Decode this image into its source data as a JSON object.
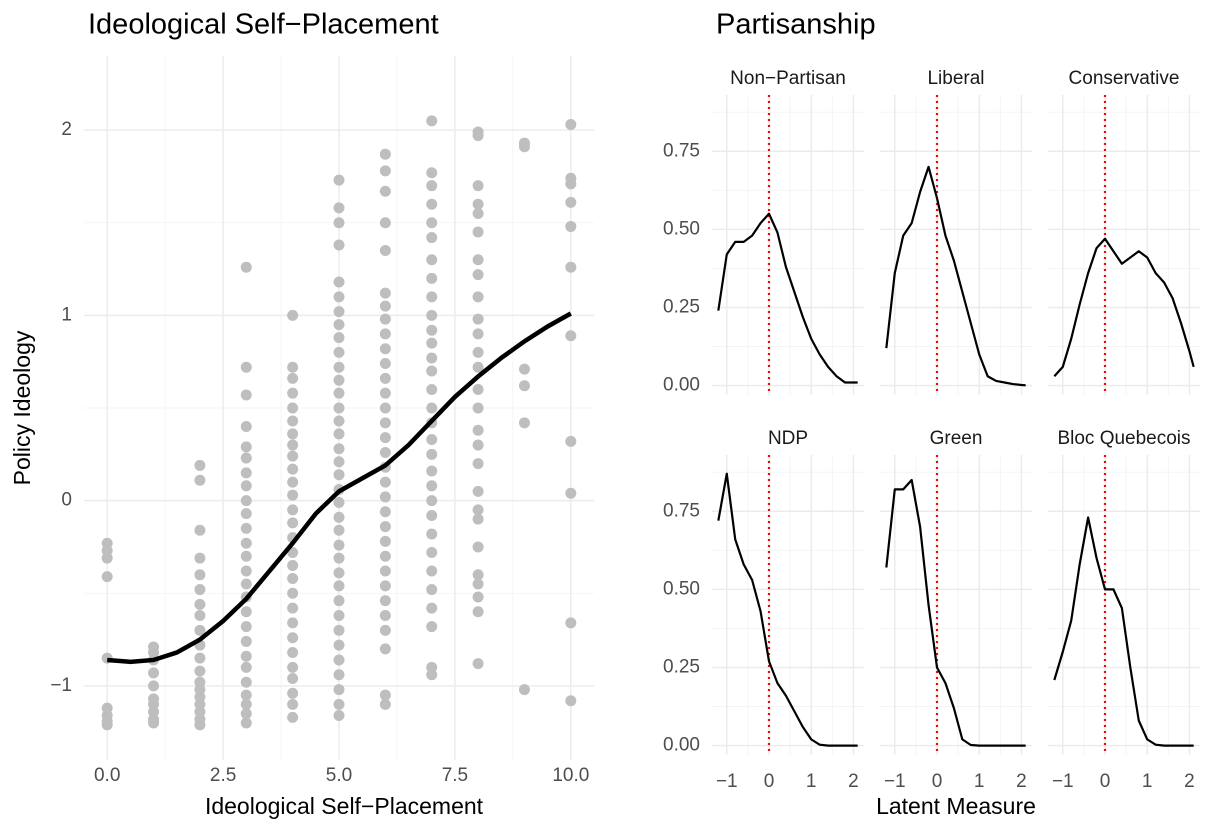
{
  "chart_data": [
    {
      "type": "scatter",
      "title": "Ideological Self−Placement",
      "x_label": "Ideological Self−Placement",
      "y_label": "Policy Ideology",
      "xlim": [
        -0.5,
        10.5
      ],
      "ylim": [
        -1.4,
        2.4
      ],
      "xticks": [
        {
          "value": 0,
          "label": "0.0"
        },
        2.5,
        {
          "value": 5,
          "label": "5.0"
        },
        7.5,
        {
          "value": 10,
          "label": "10.0"
        }
      ],
      "yticks": [
        {
          "value": -1,
          "label": "−1"
        },
        0,
        1,
        2
      ],
      "x_minor_ticks": [
        1.25,
        3.75,
        6.25,
        8.75
      ],
      "y_minor_ticks": [
        -0.5,
        0.5,
        1.5
      ],
      "grid": true,
      "point_color": "#bebebe",
      "groups": [
        {
          "x": 0,
          "y": [
            -0.23,
            -0.27,
            -0.31,
            -0.41,
            -0.85,
            -1.12,
            -1.16,
            -1.19,
            -1.21
          ]
        },
        {
          "x": 1,
          "y": [
            -0.79,
            -0.82,
            -0.86,
            -0.93,
            -1.0,
            -1.07,
            -1.1,
            -1.14,
            -1.18,
            -1.2
          ]
        },
        {
          "x": 2,
          "y": [
            0.19,
            0.11,
            -0.16,
            -0.31,
            -0.4,
            -0.48,
            -0.56,
            -0.62,
            -0.7,
            -0.78,
            -0.85,
            -0.92,
            -0.98,
            -1.02,
            -1.06,
            -1.1,
            -1.14,
            -1.18,
            -1.21
          ]
        },
        {
          "x": 3,
          "y": [
            1.26,
            0.72,
            0.57,
            0.4,
            0.29,
            0.23,
            0.15,
            0.08,
            0.0,
            -0.07,
            -0.15,
            -0.23,
            -0.3,
            -0.38,
            -0.45,
            -0.52,
            -0.6,
            -0.68,
            -0.76,
            -0.84,
            -0.9,
            -0.98,
            -1.05,
            -1.1,
            -1.15,
            -1.2
          ]
        },
        {
          "x": 4,
          "y": [
            1.0,
            0.72,
            0.66,
            0.58,
            0.5,
            0.43,
            0.36,
            0.3,
            0.24,
            0.17,
            0.1,
            0.03,
            -0.05,
            -0.12,
            -0.2,
            -0.28,
            -0.35,
            -0.42,
            -0.5,
            -0.58,
            -0.66,
            -0.74,
            -0.82,
            -0.9,
            -0.96,
            -1.04,
            -1.1,
            -1.17
          ]
        },
        {
          "x": 5,
          "y": [
            1.73,
            1.58,
            1.5,
            1.38,
            1.18,
            1.1,
            1.02,
            0.95,
            0.88,
            0.8,
            0.72,
            0.65,
            0.58,
            0.5,
            0.43,
            0.36,
            0.28,
            0.21,
            0.14,
            0.06,
            -0.01,
            -0.09,
            -0.16,
            -0.24,
            -0.31,
            -0.39,
            -0.46,
            -0.54,
            -0.62,
            -0.7,
            -0.78,
            -0.86,
            -0.94,
            -1.02,
            -1.1,
            -1.16
          ]
        },
        {
          "x": 6,
          "y": [
            1.87,
            1.78,
            1.67,
            1.5,
            1.35,
            1.12,
            1.05,
            0.98,
            0.9,
            0.82,
            0.74,
            0.66,
            0.58,
            0.5,
            0.42,
            0.34,
            0.26,
            0.18,
            0.1,
            0.02,
            -0.06,
            -0.14,
            -0.22,
            -0.3,
            -0.38,
            -0.46,
            -0.54,
            -0.62,
            -0.7,
            -0.8,
            -1.05,
            -1.1
          ]
        },
        {
          "x": 7,
          "y": [
            2.05,
            1.77,
            1.7,
            1.6,
            1.5,
            1.42,
            1.3,
            1.2,
            1.1,
            1.0,
            0.92,
            0.85,
            0.77,
            0.7,
            0.6,
            0.5,
            0.42,
            0.33,
            0.25,
            0.16,
            0.08,
            0.0,
            -0.08,
            -0.18,
            -0.28,
            -0.38,
            -0.48,
            -0.58,
            -0.68,
            -0.9,
            -0.94
          ]
        },
        {
          "x": 8,
          "y": [
            1.99,
            1.97,
            1.7,
            1.6,
            1.55,
            1.45,
            1.3,
            1.22,
            1.1,
            0.98,
            0.9,
            0.8,
            0.72,
            0.6,
            0.5,
            0.38,
            0.3,
            0.2,
            0.05,
            -0.05,
            -0.1,
            -0.25,
            -0.4,
            -0.45,
            -0.52,
            -0.6,
            -0.88
          ]
        },
        {
          "x": 9,
          "y": [
            1.93,
            1.91,
            0.71,
            0.62,
            0.42,
            -1.02
          ]
        },
        {
          "x": 10,
          "y": [
            2.03,
            1.74,
            1.71,
            1.61,
            1.48,
            1.26,
            0.89,
            0.32,
            0.04,
            -0.66,
            -1.08
          ]
        }
      ],
      "smooth": {
        "color": "#000000",
        "x": [
          0,
          0.5,
          1,
          1.5,
          2,
          2.5,
          3,
          3.5,
          4,
          4.5,
          5,
          5.5,
          6,
          6.5,
          7,
          7.5,
          8,
          8.5,
          9,
          9.5,
          10
        ],
        "y": [
          -0.86,
          -0.87,
          -0.86,
          -0.82,
          -0.75,
          -0.65,
          -0.53,
          -0.38,
          -0.23,
          -0.07,
          0.05,
          0.12,
          0.19,
          0.3,
          0.43,
          0.56,
          0.67,
          0.77,
          0.86,
          0.94,
          1.01
        ]
      }
    },
    {
      "type": "facet_line",
      "title": "Partisanship",
      "x_label": "Latent Measure",
      "xlim": [
        -1.35,
        2.25
      ],
      "ylim": [
        -0.03,
        0.93
      ],
      "xticks": [
        {
          "value": -1,
          "label": "−1"
        },
        0,
        1,
        2
      ],
      "yticks": [
        {
          "value": 0,
          "label": "0.00"
        },
        0.25,
        {
          "value": 0.5,
          "label": "0.50"
        },
        0.75
      ],
      "x_minor_ticks": [
        -0.5,
        0.5,
        1.5
      ],
      "y_minor_ticks": [
        0.125,
        0.375,
        0.625,
        0.875
      ],
      "grid": true,
      "line_color": "#000000",
      "vline": {
        "value": 0,
        "color": "#ff0000"
      },
      "x": [
        -1.2,
        -1.0,
        -0.8,
        -0.6,
        -0.4,
        -0.2,
        0,
        0.2,
        0.4,
        0.6,
        0.8,
        1.0,
        1.2,
        1.4,
        1.6,
        1.8,
        2.0,
        2.1
      ],
      "facets": [
        {
          "name": "Non−Partisan",
          "values": [
            0.24,
            0.42,
            0.46,
            0.46,
            0.48,
            0.52,
            0.55,
            0.49,
            0.38,
            0.3,
            0.22,
            0.15,
            0.1,
            0.06,
            0.03,
            0.01,
            0.01,
            0.01
          ]
        },
        {
          "name": "Liberal",
          "values": [
            0.12,
            0.36,
            0.48,
            0.52,
            0.62,
            0.7,
            0.6,
            0.48,
            0.4,
            0.3,
            0.2,
            0.1,
            0.03,
            0.015,
            0.01,
            0.005,
            0.002,
            0.001
          ]
        },
        {
          "name": "Conservative",
          "values": [
            0.03,
            0.06,
            0.15,
            0.26,
            0.36,
            0.44,
            0.47,
            0.43,
            0.39,
            0.41,
            0.43,
            0.41,
            0.36,
            0.33,
            0.28,
            0.2,
            0.11,
            0.06
          ]
        },
        {
          "name": "NDP",
          "values": [
            0.72,
            0.87,
            0.66,
            0.58,
            0.53,
            0.43,
            0.27,
            0.2,
            0.16,
            0.11,
            0.06,
            0.02,
            0.003,
            0,
            0,
            0,
            0,
            0
          ]
        },
        {
          "name": "Green",
          "values": [
            0.57,
            0.82,
            0.82,
            0.85,
            0.7,
            0.45,
            0.25,
            0.2,
            0.12,
            0.02,
            0.002,
            0,
            0,
            0,
            0,
            0,
            0,
            0
          ]
        },
        {
          "name": "Bloc Quebecois",
          "values": [
            0.21,
            0.3,
            0.4,
            0.58,
            0.73,
            0.6,
            0.5,
            0.5,
            0.44,
            0.25,
            0.08,
            0.02,
            0.003,
            0,
            0,
            0,
            0,
            0
          ]
        }
      ]
    }
  ]
}
